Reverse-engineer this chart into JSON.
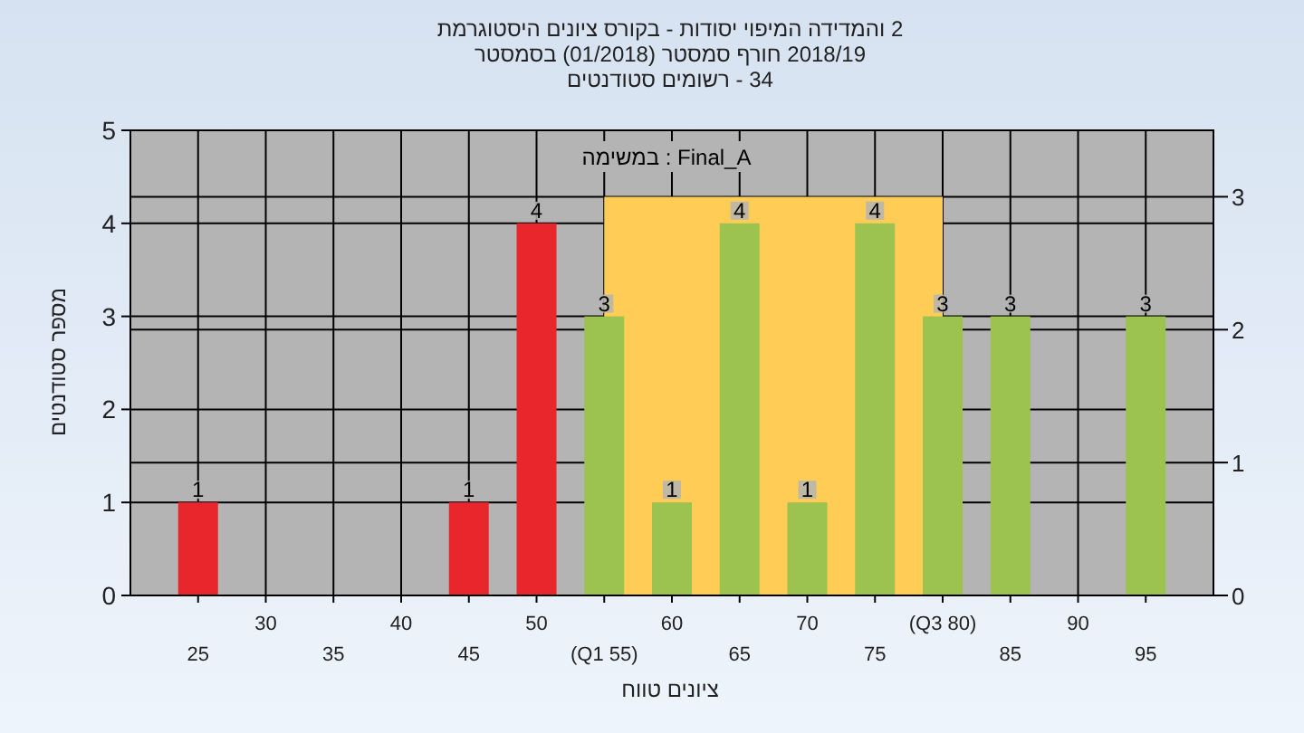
{
  "chart_data": {
    "type": "bar",
    "title": "2 והמדידה המיפוי יסודות - בקורס ציונים היסטוגרמת",
    "subtitle": "2018/19 חורף סמסטר  (01/2018)  בסמסטר",
    "xlabel": "ציונים טווח",
    "ylabel": "מספר סטודנטים",
    "annotations": [
      "34 - רשומים סטודנטים",
      "Final_A : במשימה"
    ],
    "categories": [
      "25",
      "30",
      "35",
      "40",
      "45",
      "50",
      "(Q1 55)",
      "60",
      "65",
      "70",
      "75",
      "(Q3 80)",
      "85",
      "90",
      "95"
    ],
    "series": [
      {
        "type": "area",
        "axis": "y2",
        "color": "#ffcc55",
        "values": [
          null,
          null,
          null,
          null,
          null,
          null,
          3,
          3,
          null,
          3,
          3,
          3,
          null,
          null,
          null
        ]
      },
      {
        "colors": [
          "#e8262b",
          "#e8262b",
          "#e8262b",
          "#e8262b",
          "#e8262b",
          "#e8262b",
          "#9cc24f",
          "#9cc24f",
          "#9cc24f",
          "#9cc24f",
          "#9cc24f",
          "#9cc24f",
          "#9cc24f",
          "#9cc24f",
          "#9cc24f"
        ],
        "values": [
          1,
          0,
          0,
          0,
          1,
          4,
          3,
          1,
          4,
          1,
          4,
          3,
          3,
          0,
          3
        ],
        "value_labels": [
          "1",
          null,
          null,
          null,
          "1",
          "4",
          "3",
          "1",
          "4",
          "1",
          "4",
          "3",
          "3",
          null,
          "3"
        ]
      }
    ],
    "ylim": [
      0,
      5
    ],
    "yticks": [
      0,
      1,
      2,
      3,
      4,
      5
    ],
    "y2lim": [
      0,
      3.5
    ],
    "y2ticks": [
      0,
      1,
      2,
      3
    ],
    "grid": true
  }
}
